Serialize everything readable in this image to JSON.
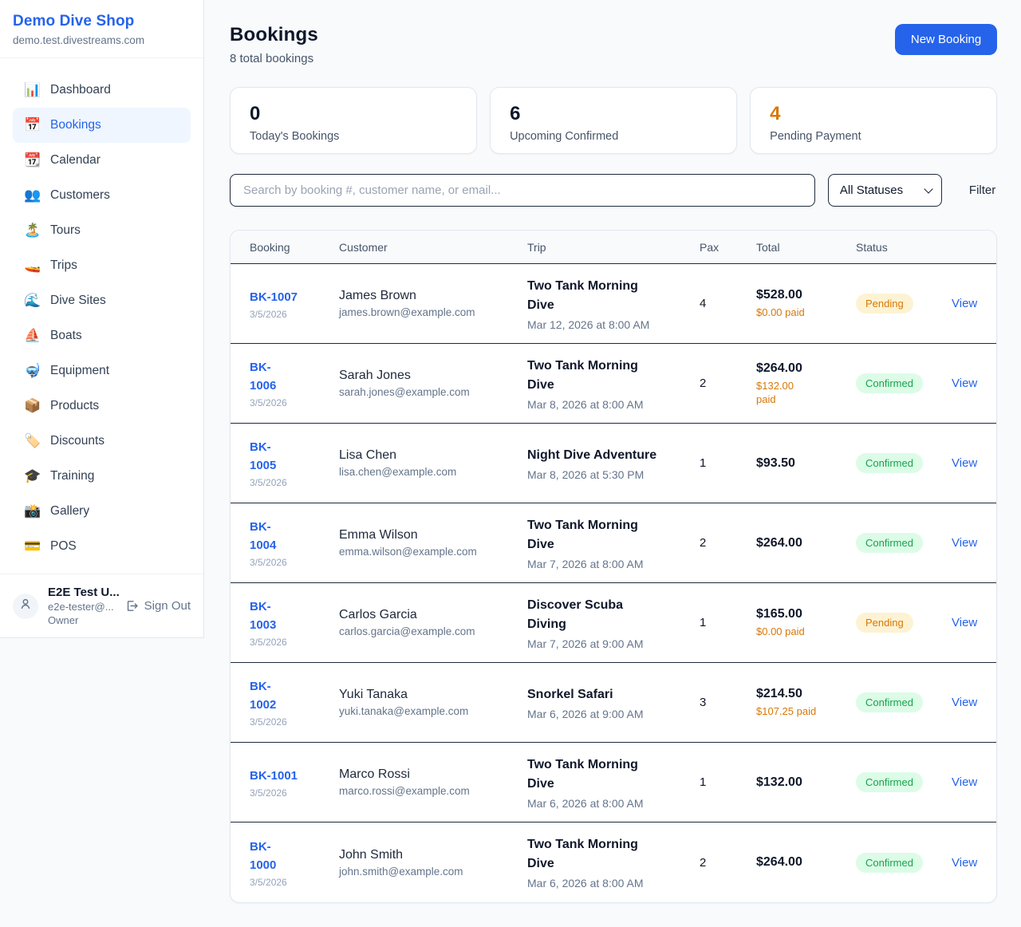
{
  "colors": {
    "accent_blue": "#2563eb",
    "pending_orange": "#d97706",
    "confirmed_green": "#16a34a",
    "pending_badge_bg": "#fdf3d3",
    "confirmed_badge_bg": "#dcfce7",
    "page_bg": "#f8fafc"
  },
  "sidebar": {
    "brand": {
      "name": "Demo Dive Shop",
      "domain": "demo.test.divestreams.com"
    },
    "nav": [
      {
        "label": "Dashboard",
        "icon": "bar-chart-icon",
        "glyph": "📊",
        "active": false
      },
      {
        "label": "Bookings",
        "icon": "calendar-icon",
        "glyph": "📅",
        "active": true
      },
      {
        "label": "Calendar",
        "icon": "tear-off-calendar-icon",
        "glyph": "📆",
        "active": false
      },
      {
        "label": "Customers",
        "icon": "people-icon",
        "glyph": "👥",
        "active": false
      },
      {
        "label": "Tours",
        "icon": "island-icon",
        "glyph": "🏝️",
        "active": false
      },
      {
        "label": "Trips",
        "icon": "speedboat-icon",
        "glyph": "🚤",
        "active": false
      },
      {
        "label": "Dive Sites",
        "icon": "wave-icon",
        "glyph": "🌊",
        "active": false
      },
      {
        "label": "Boats",
        "icon": "sailboat-icon",
        "glyph": "⛵",
        "active": false
      },
      {
        "label": "Equipment",
        "icon": "diving-mask-icon",
        "glyph": "🤿",
        "active": false
      },
      {
        "label": "Products",
        "icon": "package-icon",
        "glyph": "📦",
        "active": false
      },
      {
        "label": "Discounts",
        "icon": "label-tag-icon",
        "glyph": "🏷️",
        "active": false
      },
      {
        "label": "Training",
        "icon": "graduation-cap-icon",
        "glyph": "🎓",
        "active": false
      },
      {
        "label": "Gallery",
        "icon": "camera-flash-icon",
        "glyph": "📸",
        "active": false
      },
      {
        "label": "POS",
        "icon": "credit-card-icon",
        "glyph": "💳",
        "active": false
      }
    ],
    "user": {
      "name": "E2E Test U...",
      "email": "e2e-tester@...",
      "role": "Owner",
      "sign_out_label": "Sign Out"
    }
  },
  "header": {
    "title": "Bookings",
    "subtitle": "8 total bookings",
    "new_booking_label": "New Booking"
  },
  "stats": [
    {
      "value": "0",
      "label": "Today's Bookings"
    },
    {
      "value": "6",
      "label": "Upcoming Confirmed"
    },
    {
      "value": "4",
      "label": "Pending Payment"
    }
  ],
  "controls": {
    "search_placeholder": "Search by booking #, customer name, or email...",
    "status_filter_value": "All Statuses",
    "filter_label": "Filter"
  },
  "table": {
    "columns": [
      "Booking",
      "Customer",
      "Trip",
      "Pax",
      "Total",
      "Status"
    ],
    "view_label": "View",
    "rows": [
      {
        "id_lines": [
          "BK-1007"
        ],
        "booking_date": "3/5/2026",
        "customer_name": "James Brown",
        "customer_email": "james.brown@example.com",
        "trip_lines": [
          "Two Tank Morning",
          "Dive"
        ],
        "trip_datetime": "Mar 12, 2026 at 8:00 AM",
        "pax": "4",
        "total": "$528.00",
        "paid_lines": [
          "$0.00 paid"
        ],
        "status": "Pending"
      },
      {
        "id_lines": [
          "BK-",
          "1006"
        ],
        "booking_date": "3/5/2026",
        "customer_name": "Sarah Jones",
        "customer_email": "sarah.jones@example.com",
        "trip_lines": [
          "Two Tank Morning",
          "Dive"
        ],
        "trip_datetime": "Mar 8, 2026 at 8:00 AM",
        "pax": "2",
        "total": "$264.00",
        "paid_lines": [
          "$132.00",
          "paid"
        ],
        "status": "Confirmed"
      },
      {
        "id_lines": [
          "BK-",
          "1005"
        ],
        "booking_date": "3/5/2026",
        "customer_name": "Lisa Chen",
        "customer_email": "lisa.chen@example.com",
        "trip_lines": [
          "Night Dive Adventure"
        ],
        "trip_datetime": "Mar 8, 2026 at 5:30 PM",
        "pax": "1",
        "total": "$93.50",
        "paid_lines": [],
        "status": "Confirmed"
      },
      {
        "id_lines": [
          "BK-",
          "1004"
        ],
        "booking_date": "3/5/2026",
        "customer_name": "Emma Wilson",
        "customer_email": "emma.wilson@example.com",
        "trip_lines": [
          "Two Tank Morning",
          "Dive"
        ],
        "trip_datetime": "Mar 7, 2026 at 8:00 AM",
        "pax": "2",
        "total": "$264.00",
        "paid_lines": [],
        "status": "Confirmed"
      },
      {
        "id_lines": [
          "BK-",
          "1003"
        ],
        "booking_date": "3/5/2026",
        "customer_name": "Carlos Garcia",
        "customer_email": "carlos.garcia@example.com",
        "trip_lines": [
          "Discover Scuba",
          "Diving"
        ],
        "trip_datetime": "Mar 7, 2026 at 9:00 AM",
        "pax": "1",
        "total": "$165.00",
        "paid_lines": [
          "$0.00 paid"
        ],
        "status": "Pending"
      },
      {
        "id_lines": [
          "BK-",
          "1002"
        ],
        "booking_date": "3/5/2026",
        "customer_name": "Yuki Tanaka",
        "customer_email": "yuki.tanaka@example.com",
        "trip_lines": [
          "Snorkel Safari"
        ],
        "trip_datetime": "Mar 6, 2026 at 9:00 AM",
        "pax": "3",
        "total": "$214.50",
        "paid_lines": [
          "$107.25 paid"
        ],
        "status": "Confirmed"
      },
      {
        "id_lines": [
          "BK-1001"
        ],
        "booking_date": "3/5/2026",
        "customer_name": "Marco Rossi",
        "customer_email": "marco.rossi@example.com",
        "trip_lines": [
          "Two Tank Morning",
          "Dive"
        ],
        "trip_datetime": "Mar 6, 2026 at 8:00 AM",
        "pax": "1",
        "total": "$132.00",
        "paid_lines": [],
        "status": "Confirmed"
      },
      {
        "id_lines": [
          "BK-",
          "1000"
        ],
        "booking_date": "3/5/2026",
        "customer_name": "John Smith",
        "customer_email": "john.smith@example.com",
        "trip_lines": [
          "Two Tank Morning",
          "Dive"
        ],
        "trip_datetime": "Mar 6, 2026 at 8:00 AM",
        "pax": "2",
        "total": "$264.00",
        "paid_lines": [],
        "status": "Confirmed"
      }
    ]
  }
}
